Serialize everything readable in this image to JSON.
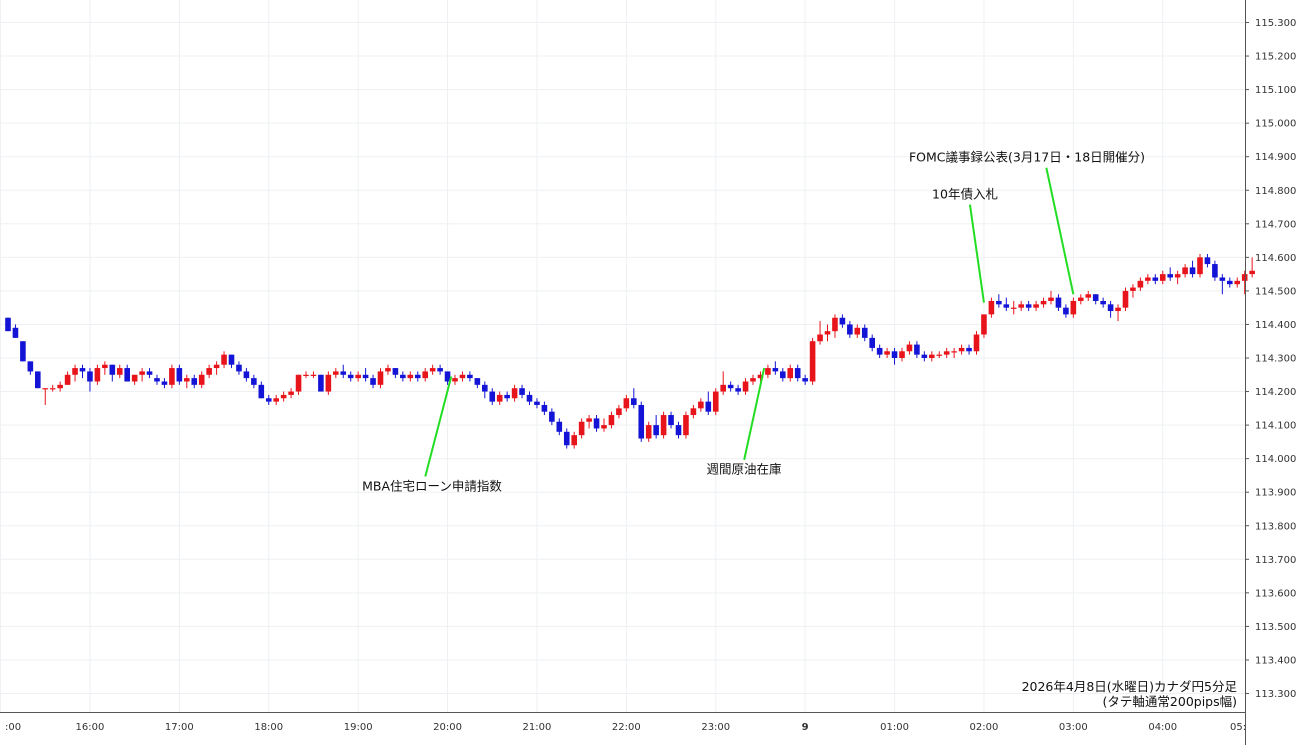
{
  "chart_data": {
    "type": "candlestick",
    "note_line1": "2026年4月8日(水曜日)カナダ円5分足",
    "note_line2": "(タテ軸通常200pips幅)",
    "ylim": [
      113.25,
      115.33
    ],
    "y_ticks": [
      "115.300",
      "115.200",
      "115.100",
      "115.000",
      "114.900",
      "114.800",
      "114.700",
      "114.600",
      "114.500",
      "114.400",
      "114.300",
      "114.200",
      "114.100",
      "114.000",
      "113.900",
      "113.800",
      "113.700",
      "113.600",
      "113.500",
      "113.400",
      "113.300"
    ],
    "x_ticks": [
      {
        "label": ":00",
        "bar": -1
      },
      {
        "label": "16:00",
        "bar": 11
      },
      {
        "label": "17:00",
        "bar": 23
      },
      {
        "label": "18:00",
        "bar": 35
      },
      {
        "label": "19:00",
        "bar": 47
      },
      {
        "label": "20:00",
        "bar": 59
      },
      {
        "label": "21:00",
        "bar": 71
      },
      {
        "label": "22:00",
        "bar": 83
      },
      {
        "label": "23:00",
        "bar": 95
      },
      {
        "label": "9",
        "bar": 107,
        "bold": true
      },
      {
        "label": "01:00",
        "bar": 119
      },
      {
        "label": "02:00",
        "bar": 131
      },
      {
        "label": "03:00",
        "bar": 143
      },
      {
        "label": "04:00",
        "bar": 155
      },
      {
        "label": "05:",
        "bar": 167
      }
    ],
    "annotations": [
      {
        "text": "MBA住宅ローン申請指数",
        "bar": 59.5,
        "price": 114.245,
        "label_price": 113.905,
        "anchor": "middle"
      },
      {
        "text": "週間原油在庫",
        "bar": 101.5,
        "price": 114.27,
        "label_price": 113.955,
        "anchor": "middle"
      },
      {
        "text": "10年債入札",
        "bar": 131,
        "price": 114.465,
        "label_price": 114.775,
        "anchor": "middle"
      },
      {
        "text": "FOMC議事録公表(3月17日・18日開催分)",
        "bar": 143,
        "price": 114.49,
        "label_price": 114.885,
        "anchor": "middle"
      }
    ],
    "candles": [
      [
        114.42,
        114.42,
        114.38,
        114.38
      ],
      [
        114.39,
        114.4,
        114.36,
        114.36
      ],
      [
        114.35,
        114.35,
        114.29,
        114.29
      ],
      [
        114.29,
        114.29,
        114.25,
        114.26
      ],
      [
        114.26,
        114.26,
        114.21,
        114.21
      ],
      [
        114.21,
        114.21,
        114.16,
        114.21
      ],
      [
        114.21,
        114.22,
        114.2,
        114.21
      ],
      [
        114.21,
        114.23,
        114.2,
        114.22
      ],
      [
        114.22,
        114.26,
        114.22,
        114.25
      ],
      [
        114.25,
        114.28,
        114.23,
        114.27
      ],
      [
        114.27,
        114.28,
        114.24,
        114.26
      ],
      [
        114.26,
        114.27,
        114.2,
        114.23
      ],
      [
        114.23,
        114.28,
        114.22,
        114.27
      ],
      [
        114.27,
        114.29,
        114.25,
        114.28
      ],
      [
        114.28,
        114.28,
        114.23,
        114.25
      ],
      [
        114.25,
        114.28,
        114.24,
        114.27
      ],
      [
        114.27,
        114.28,
        114.23,
        114.23
      ],
      [
        114.23,
        114.25,
        114.22,
        114.25
      ],
      [
        114.25,
        114.27,
        114.23,
        114.26
      ],
      [
        114.26,
        114.27,
        114.24,
        114.25
      ],
      [
        114.24,
        114.25,
        114.22,
        114.23
      ],
      [
        114.23,
        114.24,
        114.21,
        114.22
      ],
      [
        114.22,
        114.28,
        114.21,
        114.27
      ],
      [
        114.27,
        114.28,
        114.22,
        114.23
      ],
      [
        114.23,
        114.25,
        114.21,
        114.24
      ],
      [
        114.24,
        114.25,
        114.21,
        114.22
      ],
      [
        114.22,
        114.26,
        114.21,
        114.25
      ],
      [
        114.25,
        114.28,
        114.24,
        114.27
      ],
      [
        114.27,
        114.29,
        114.25,
        114.28
      ],
      [
        114.28,
        114.32,
        114.27,
        114.31
      ],
      [
        114.31,
        114.31,
        114.27,
        114.28
      ],
      [
        114.28,
        114.29,
        114.25,
        114.26
      ],
      [
        114.26,
        114.27,
        114.23,
        114.24
      ],
      [
        114.24,
        114.25,
        114.21,
        114.22
      ],
      [
        114.22,
        114.23,
        114.18,
        114.18
      ],
      [
        114.18,
        114.19,
        114.16,
        114.17
      ],
      [
        114.17,
        114.19,
        114.16,
        114.18
      ],
      [
        114.18,
        114.2,
        114.17,
        114.19
      ],
      [
        114.19,
        114.21,
        114.18,
        114.2
      ],
      [
        114.2,
        114.25,
        114.19,
        114.25
      ],
      [
        114.25,
        114.26,
        114.24,
        114.25
      ],
      [
        114.25,
        114.26,
        114.24,
        114.25
      ],
      [
        114.25,
        114.25,
        114.2,
        114.2
      ],
      [
        114.2,
        114.26,
        114.19,
        114.25
      ],
      [
        114.25,
        114.27,
        114.24,
        114.26
      ],
      [
        114.26,
        114.28,
        114.24,
        114.25
      ],
      [
        114.25,
        114.26,
        114.23,
        114.24
      ],
      [
        114.24,
        114.26,
        114.23,
        114.25
      ],
      [
        114.25,
        114.27,
        114.23,
        114.24
      ],
      [
        114.24,
        114.25,
        114.21,
        114.22
      ],
      [
        114.22,
        114.27,
        114.21,
        114.26
      ],
      [
        114.26,
        114.28,
        114.25,
        114.27
      ],
      [
        114.27,
        114.27,
        114.24,
        114.25
      ],
      [
        114.25,
        114.26,
        114.23,
        114.24
      ],
      [
        114.24,
        114.26,
        114.23,
        114.25
      ],
      [
        114.25,
        114.26,
        114.23,
        114.24
      ],
      [
        114.24,
        114.27,
        114.23,
        114.26
      ],
      [
        114.26,
        114.28,
        114.25,
        114.27
      ],
      [
        114.27,
        114.28,
        114.25,
        114.26
      ],
      [
        114.26,
        114.26,
        114.22,
        114.23
      ],
      [
        114.23,
        114.25,
        114.22,
        114.24
      ],
      [
        114.24,
        114.26,
        114.23,
        114.25
      ],
      [
        114.25,
        114.26,
        114.23,
        114.24
      ],
      [
        114.24,
        114.24,
        114.21,
        114.22
      ],
      [
        114.22,
        114.23,
        114.18,
        114.2
      ],
      [
        114.2,
        114.21,
        114.16,
        114.17
      ],
      [
        114.17,
        114.2,
        114.16,
        114.19
      ],
      [
        114.19,
        114.2,
        114.17,
        114.18
      ],
      [
        114.18,
        114.22,
        114.17,
        114.21
      ],
      [
        114.21,
        114.22,
        114.18,
        114.19
      ],
      [
        114.19,
        114.2,
        114.16,
        114.17
      ],
      [
        114.17,
        114.18,
        114.15,
        114.16
      ],
      [
        114.16,
        114.17,
        114.13,
        114.14
      ],
      [
        114.14,
        114.15,
        114.1,
        114.11
      ],
      [
        114.11,
        114.12,
        114.07,
        114.08
      ],
      [
        114.08,
        114.09,
        114.03,
        114.04
      ],
      [
        114.04,
        114.08,
        114.03,
        114.07
      ],
      [
        114.07,
        114.12,
        114.06,
        114.11
      ],
      [
        114.11,
        114.13,
        114.09,
        114.12
      ],
      [
        114.12,
        114.13,
        114.08,
        114.09
      ],
      [
        114.09,
        114.12,
        114.08,
        114.1
      ],
      [
        114.1,
        114.14,
        114.09,
        114.13
      ],
      [
        114.13,
        114.16,
        114.12,
        114.15
      ],
      [
        114.15,
        114.19,
        114.14,
        114.18
      ],
      [
        114.18,
        114.21,
        114.15,
        114.16
      ],
      [
        114.16,
        114.17,
        114.05,
        114.06
      ],
      [
        114.06,
        114.11,
        114.05,
        114.1
      ],
      [
        114.1,
        114.13,
        114.06,
        114.07
      ],
      [
        114.07,
        114.14,
        114.06,
        114.13
      ],
      [
        114.13,
        114.14,
        114.09,
        114.1
      ],
      [
        114.1,
        114.11,
        114.06,
        114.07
      ],
      [
        114.07,
        114.14,
        114.06,
        114.13
      ],
      [
        114.13,
        114.16,
        114.12,
        114.15
      ],
      [
        114.15,
        114.18,
        114.14,
        114.17
      ],
      [
        114.17,
        114.2,
        114.13,
        114.14
      ],
      [
        114.14,
        114.21,
        114.13,
        114.2
      ],
      [
        114.2,
        114.26,
        114.19,
        114.22
      ],
      [
        114.22,
        114.23,
        114.2,
        114.21
      ],
      [
        114.21,
        114.22,
        114.19,
        114.2
      ],
      [
        114.2,
        114.24,
        114.19,
        114.23
      ],
      [
        114.23,
        114.25,
        114.22,
        114.24
      ],
      [
        114.24,
        114.26,
        114.23,
        114.25
      ],
      [
        114.25,
        114.28,
        114.24,
        114.27
      ],
      [
        114.27,
        114.29,
        114.25,
        114.26
      ],
      [
        114.26,
        114.27,
        114.23,
        114.24
      ],
      [
        114.24,
        114.28,
        114.23,
        114.27
      ],
      [
        114.27,
        114.28,
        114.23,
        114.24
      ],
      [
        114.24,
        114.25,
        114.22,
        114.23
      ],
      [
        114.23,
        114.36,
        114.22,
        114.35
      ],
      [
        114.35,
        114.41,
        114.34,
        114.37
      ],
      [
        114.37,
        114.4,
        114.35,
        114.38
      ],
      [
        114.38,
        114.43,
        114.36,
        114.42
      ],
      [
        114.42,
        114.43,
        114.39,
        114.4
      ],
      [
        114.4,
        114.41,
        114.36,
        114.37
      ],
      [
        114.37,
        114.4,
        114.36,
        114.39
      ],
      [
        114.39,
        114.4,
        114.35,
        114.36
      ],
      [
        114.36,
        114.37,
        114.32,
        114.33
      ],
      [
        114.33,
        114.34,
        114.3,
        114.31
      ],
      [
        114.31,
        114.33,
        114.3,
        114.32
      ],
      [
        114.32,
        114.33,
        114.28,
        114.3
      ],
      [
        114.3,
        114.33,
        114.29,
        114.32
      ],
      [
        114.32,
        114.35,
        114.31,
        114.34
      ],
      [
        114.34,
        114.35,
        114.3,
        114.31
      ],
      [
        114.31,
        114.32,
        114.29,
        114.3
      ],
      [
        114.3,
        114.32,
        114.29,
        114.31
      ],
      [
        114.31,
        114.32,
        114.3,
        114.31
      ],
      [
        114.31,
        114.33,
        114.3,
        114.32
      ],
      [
        114.32,
        114.33,
        114.3,
        114.32
      ],
      [
        114.32,
        114.34,
        114.31,
        114.33
      ],
      [
        114.33,
        114.34,
        114.31,
        114.32
      ],
      [
        114.32,
        114.38,
        114.31,
        114.37
      ],
      [
        114.37,
        114.43,
        114.36,
        114.43
      ],
      [
        114.43,
        114.48,
        114.42,
        114.47
      ],
      [
        114.47,
        114.49,
        114.45,
        114.46
      ],
      [
        114.46,
        114.48,
        114.44,
        114.45
      ],
      [
        114.45,
        114.47,
        114.43,
        114.45
      ],
      [
        114.45,
        114.47,
        114.44,
        114.46
      ],
      [
        114.46,
        114.47,
        114.44,
        114.45
      ],
      [
        114.45,
        114.47,
        114.44,
        114.46
      ],
      [
        114.46,
        114.48,
        114.45,
        114.47
      ],
      [
        114.47,
        114.5,
        114.46,
        114.48
      ],
      [
        114.48,
        114.49,
        114.44,
        114.45
      ],
      [
        114.45,
        114.46,
        114.42,
        114.43
      ],
      [
        114.43,
        114.48,
        114.42,
        114.47
      ],
      [
        114.47,
        114.49,
        114.46,
        114.48
      ],
      [
        114.48,
        114.5,
        114.47,
        114.49
      ],
      [
        114.49,
        114.49,
        114.46,
        114.47
      ],
      [
        114.47,
        114.48,
        114.45,
        114.46
      ],
      [
        114.46,
        114.47,
        114.42,
        114.44
      ],
      [
        114.44,
        114.46,
        114.41,
        114.45
      ],
      [
        114.45,
        114.51,
        114.44,
        114.5
      ],
      [
        114.5,
        114.52,
        114.48,
        114.51
      ],
      [
        114.51,
        114.54,
        114.5,
        114.53
      ],
      [
        114.53,
        114.55,
        114.52,
        114.54
      ],
      [
        114.54,
        114.55,
        114.52,
        114.53
      ],
      [
        114.53,
        114.56,
        114.52,
        114.55
      ],
      [
        114.55,
        114.57,
        114.53,
        114.54
      ],
      [
        114.54,
        114.56,
        114.52,
        114.55
      ],
      [
        114.55,
        114.58,
        114.54,
        114.57
      ],
      [
        114.57,
        114.59,
        114.54,
        114.55
      ],
      [
        114.55,
        114.61,
        114.54,
        114.6
      ],
      [
        114.6,
        114.61,
        114.57,
        114.58
      ],
      [
        114.58,
        114.59,
        114.53,
        114.54
      ],
      [
        114.54,
        114.55,
        114.49,
        114.53
      ],
      [
        114.53,
        114.54,
        114.51,
        114.52
      ],
      [
        114.52,
        114.54,
        114.51,
        114.53
      ],
      [
        114.53,
        114.56,
        114.49,
        114.55
      ],
      [
        114.55,
        114.6,
        114.54,
        114.56
      ]
    ]
  }
}
